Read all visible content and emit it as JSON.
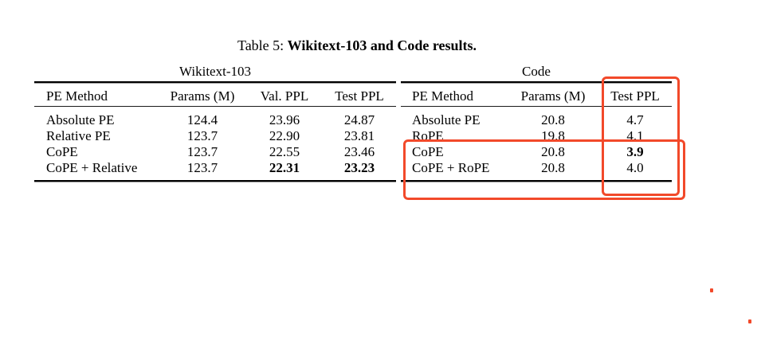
{
  "caption": {
    "prefix": "Table 5:",
    "title": "Wikitext-103 and Code results."
  },
  "tables": {
    "wikitext": {
      "group_title": "Wikitext-103",
      "headers": [
        "PE Method",
        "Params (M)",
        "Val. PPL",
        "Test PPL"
      ],
      "rows": [
        [
          "Absolute PE",
          "124.4",
          "23.96",
          "24.87"
        ],
        [
          "Relative PE",
          "123.7",
          "22.90",
          "23.81"
        ],
        [
          "CoPE",
          "123.7",
          "22.55",
          "23.46"
        ],
        [
          "CoPE + Relative",
          "123.7",
          "22.31",
          "23.23"
        ]
      ]
    },
    "code": {
      "group_title": "Code",
      "headers": [
        "PE Method",
        "Params (M)",
        "Test PPL"
      ],
      "rows": [
        [
          "Absolute PE",
          "20.8",
          "4.7"
        ],
        [
          "RoPE",
          "19.8",
          "4.1"
        ],
        [
          "CoPE",
          "20.8",
          "3.9"
        ],
        [
          "CoPE + RoPE",
          "20.8",
          "4.0"
        ]
      ]
    }
  },
  "annotations": {
    "highlight_color": "#f2492a"
  }
}
